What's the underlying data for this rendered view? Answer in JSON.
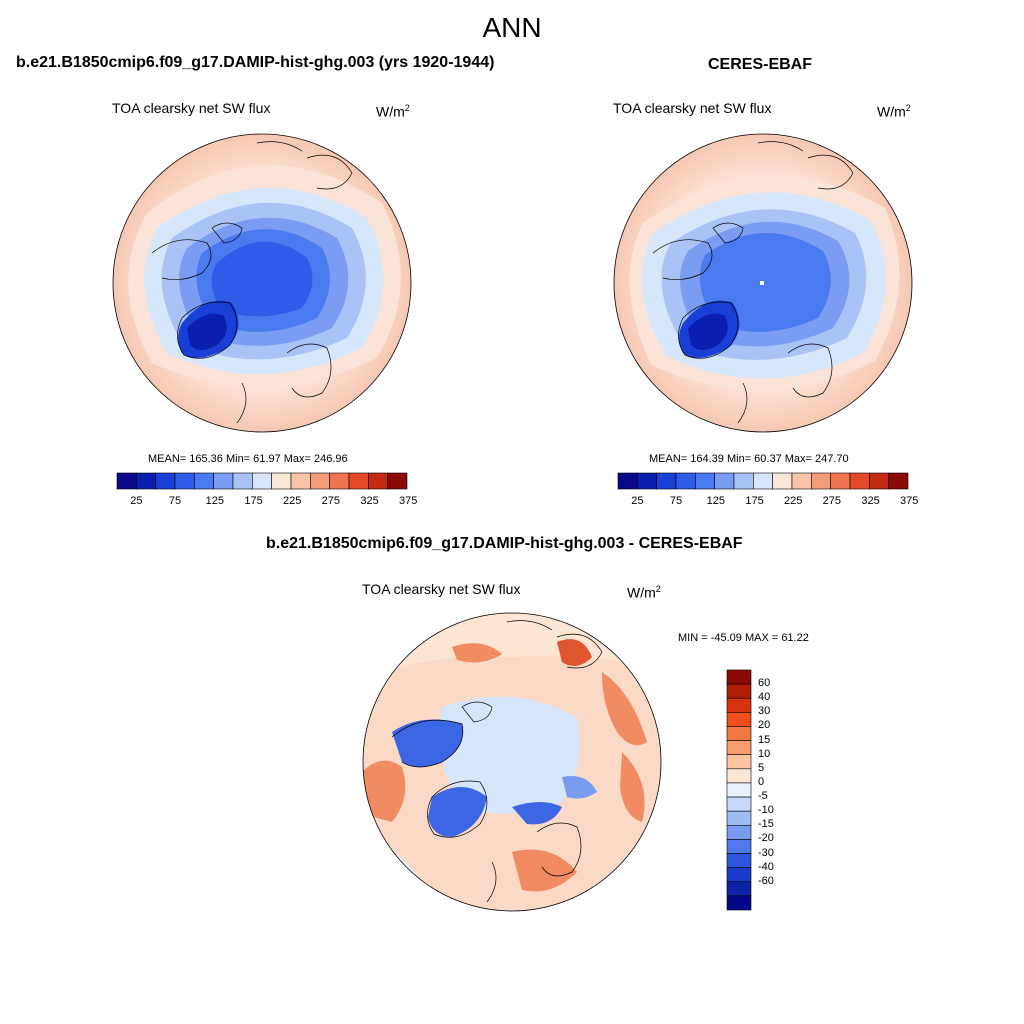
{
  "figure": {
    "title": "ANN"
  },
  "panels": [
    {
      "title": "b.e21.B1850cmip6.f09_g17.DAMIP-hist-ghg.003 (yrs 1920-1944)",
      "variable": "TOA clearsky net SW flux",
      "units": "W/m",
      "units_sup": "2",
      "stats": "MEAN= 165.36  Min=  61.97  Max= 246.96"
    },
    {
      "title": "CERES-EBAF",
      "variable": "TOA clearsky net SW flux",
      "units": "W/m",
      "units_sup": "2",
      "stats": "MEAN= 164.39  Min=  60.37  Max= 247.70"
    },
    {
      "title": "b.e21.B1850cmip6.f09_g17.DAMIP-hist-ghg.003 - CERES-EBAF",
      "variable": "TOA clearsky net SW flux",
      "units": "W/m",
      "units_sup": "2",
      "stats": "MIN = -45.09 MAX =  61.22"
    }
  ],
  "colorbar_horizontal": {
    "colors": [
      "#08088a",
      "#0a1fb0",
      "#1a3fd6",
      "#2e5ce8",
      "#4a7af0",
      "#7a9cf2",
      "#a9c3f7",
      "#d8e6fb",
      "#fde7d6",
      "#f9c4a8",
      "#f49c7a",
      "#ef7450",
      "#e44a28",
      "#c42a10",
      "#8a0a06"
    ],
    "tick_labels": [
      "25",
      "75",
      "125",
      "175",
      "225",
      "275",
      "325",
      "375"
    ]
  },
  "colorbar_vertical": {
    "colors": [
      "#8a0a06",
      "#b01e08",
      "#d8330c",
      "#f04f1c",
      "#f57840",
      "#f89c6c",
      "#fbc3a0",
      "#fde5d4",
      "#e9f1fc",
      "#c6d9f8",
      "#9fbdf3",
      "#7a9cf0",
      "#4f78ea",
      "#2d55df",
      "#1a3ccc",
      "#0c23a8",
      "#040888"
    ],
    "tick_labels": [
      "60",
      "40",
      "30",
      "20",
      "15",
      "10",
      "5",
      "0",
      "-5",
      "-10",
      "-15",
      "-20",
      "-30",
      "-40",
      "-60"
    ]
  },
  "map_colors": {
    "base_top_low": "#eeb9a5",
    "base_top_high": "#fde3d6",
    "blue_rings": [
      "#d6e6fb",
      "#a9c3f7",
      "#7a9cf2",
      "#4a7af0",
      "#2e5ce8"
    ],
    "greenland": "#1a3fd6",
    "diff_base": "#fbd9c7",
    "diff_red": "#f08b62",
    "diff_deep_red": "#e0542e",
    "diff_center": "#d8e6fb",
    "diff_blue": "#3d66e4",
    "coast": "#000000"
  }
}
